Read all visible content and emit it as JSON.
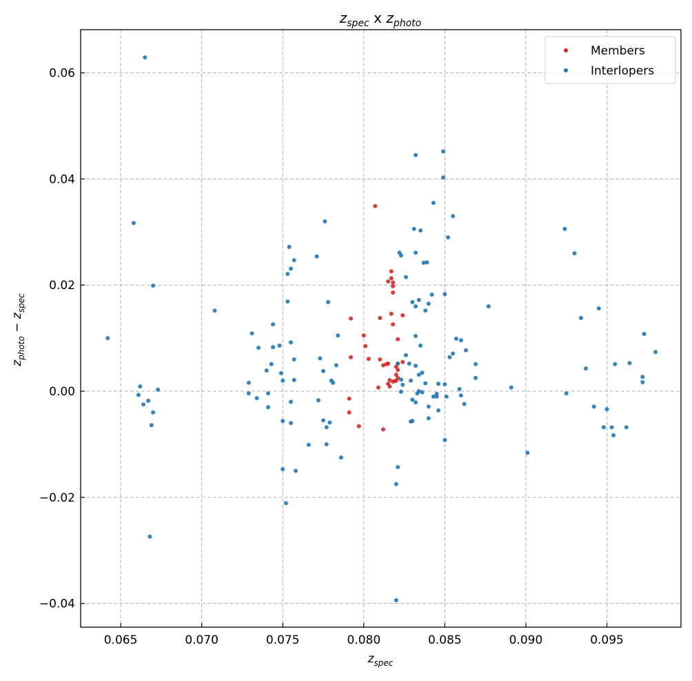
{
  "chart_data": {
    "type": "scatter",
    "title": {
      "main1": "z",
      "sub1": "spec",
      "mid": " x ",
      "main2": "z",
      "sub2": "photo"
    },
    "xlabel": {
      "main": "z",
      "sub": "spec"
    },
    "ylabel": {
      "main1": "z",
      "sub1": "photo",
      "mid": " − ",
      "main2": "z",
      "sub2": "spec"
    },
    "xlim": [
      0.06253,
      0.09957
    ],
    "ylim": [
      -0.04447,
      0.06814
    ],
    "grid": true,
    "legend_position": "top-right",
    "x_ticks": [
      0.065,
      0.07,
      0.075,
      0.08,
      0.085,
      0.09,
      0.095
    ],
    "x_tick_labels": [
      "0.065",
      "0.070",
      "0.075",
      "0.080",
      "0.085",
      "0.090",
      "0.095"
    ],
    "y_ticks": [
      -0.04,
      -0.02,
      0.0,
      0.02,
      0.04,
      0.06
    ],
    "y_tick_labels": [
      "−0.04",
      "−0.02",
      "0.00",
      "0.02",
      "0.04",
      "0.06"
    ],
    "series": [
      {
        "name": "Members",
        "color": "#d62728",
        "points": [
          [
            0.0807,
            0.0349
          ],
          [
            0.0817,
            0.0226
          ],
          [
            0.0817,
            0.0213
          ],
          [
            0.0818,
            0.0205
          ],
          [
            0.0815,
            0.0207
          ],
          [
            0.0818,
            0.0198
          ],
          [
            0.0818,
            0.0186
          ],
          [
            0.0792,
            0.0137
          ],
          [
            0.081,
            0.0138
          ],
          [
            0.0817,
            0.0146
          ],
          [
            0.0824,
            0.0143
          ],
          [
            0.0818,
            0.0126
          ],
          [
            0.08,
            0.0105
          ],
          [
            0.0801,
            0.0085
          ],
          [
            0.0821,
            0.0098
          ],
          [
            0.0792,
            0.0064
          ],
          [
            0.0803,
            0.0061
          ],
          [
            0.081,
            0.006
          ],
          [
            0.0821,
            0.0052
          ],
          [
            0.0812,
            0.0049
          ],
          [
            0.0814,
            0.0051
          ],
          [
            0.0815,
            0.0052
          ],
          [
            0.0824,
            0.0055
          ],
          [
            0.082,
            0.0046
          ],
          [
            0.0821,
            0.004
          ],
          [
            0.082,
            0.0031
          ],
          [
            0.0821,
            0.0025
          ],
          [
            0.0818,
            0.0018
          ],
          [
            0.0816,
            0.0021
          ],
          [
            0.0819,
            0.0019
          ],
          [
            0.0815,
            0.0014
          ],
          [
            0.0816,
            0.0009
          ],
          [
            0.082,
            0.002
          ],
          [
            0.0809,
            0.0007
          ],
          [
            0.0797,
            -0.0066
          ],
          [
            0.0791,
            -0.0014
          ],
          [
            0.0791,
            -0.004
          ],
          [
            0.0812,
            -0.0072
          ]
        ]
      },
      {
        "name": "Interlopers",
        "color": "#1f77b4",
        "points": [
          [
            0.0665,
            0.0629
          ],
          [
            0.0658,
            0.0317
          ],
          [
            0.067,
            0.0199
          ],
          [
            0.0642,
            0.01
          ],
          [
            0.0662,
            0.0009
          ],
          [
            0.0661,
            -0.0007
          ],
          [
            0.0664,
            -0.0025
          ],
          [
            0.0667,
            -0.0018
          ],
          [
            0.067,
            -0.004
          ],
          [
            0.0669,
            -0.0064
          ],
          [
            0.0673,
            0.0003
          ],
          [
            0.0668,
            -0.0274
          ],
          [
            0.0708,
            0.0152
          ],
          [
            0.0729,
            0.0016
          ],
          [
            0.0729,
            -0.0004
          ],
          [
            0.0731,
            0.0109
          ],
          [
            0.0734,
            -0.0013
          ],
          [
            0.0735,
            0.0082
          ],
          [
            0.074,
            0.0039
          ],
          [
            0.0741,
            -0.0004
          ],
          [
            0.0741,
            -0.003
          ],
          [
            0.0743,
            0.0051
          ],
          [
            0.0744,
            0.0126
          ],
          [
            0.0744,
            0.0083
          ],
          [
            0.0748,
            0.0086
          ],
          [
            0.0749,
            0.0034
          ],
          [
            0.075,
            0.002
          ],
          [
            0.075,
            -0.0147
          ],
          [
            0.075,
            -0.0056
          ],
          [
            0.0752,
            -0.0211
          ],
          [
            0.0753,
            0.0169
          ],
          [
            0.0753,
            0.0221
          ],
          [
            0.0754,
            0.0272
          ],
          [
            0.0755,
            0.0231
          ],
          [
            0.0755,
            0.0092
          ],
          [
            0.0755,
            -0.002
          ],
          [
            0.0755,
            -0.006
          ],
          [
            0.0757,
            0.0247
          ],
          [
            0.0757,
            0.006
          ],
          [
            0.0757,
            0.0021
          ],
          [
            0.0758,
            -0.015
          ],
          [
            0.0766,
            -0.0101
          ],
          [
            0.0771,
            0.0254
          ],
          [
            0.0772,
            -0.0017
          ],
          [
            0.0773,
            0.0062
          ],
          [
            0.0775,
            0.0038
          ],
          [
            0.0776,
            0.032
          ],
          [
            0.0775,
            -0.0055
          ],
          [
            0.0777,
            -0.0068
          ],
          [
            0.0779,
            -0.0059
          ],
          [
            0.0778,
            0.0168
          ],
          [
            0.078,
            0.002
          ],
          [
            0.0781,
            0.0016
          ],
          [
            0.0784,
            0.0105
          ],
          [
            0.0783,
            0.0049
          ],
          [
            0.0777,
            -0.01
          ],
          [
            0.0786,
            -0.0125
          ],
          [
            0.082,
            -0.0394
          ],
          [
            0.0821,
            -0.0143
          ],
          [
            0.082,
            -0.0175
          ],
          [
            0.0832,
            0.0445
          ],
          [
            0.0849,
            0.0452
          ],
          [
            0.0849,
            0.0403
          ],
          [
            0.0843,
            0.0355
          ],
          [
            0.0831,
            0.0306
          ],
          [
            0.0835,
            0.0303
          ],
          [
            0.0855,
            0.033
          ],
          [
            0.0852,
            0.029
          ],
          [
            0.0822,
            0.0261
          ],
          [
            0.0823,
            0.0256
          ],
          [
            0.0832,
            0.0261
          ],
          [
            0.0837,
            0.0242
          ],
          [
            0.0839,
            0.0243
          ],
          [
            0.0826,
            0.0215
          ],
          [
            0.0842,
            0.0182
          ],
          [
            0.085,
            0.0183
          ],
          [
            0.083,
            0.0168
          ],
          [
            0.0834,
            0.0172
          ],
          [
            0.0832,
            0.016
          ],
          [
            0.084,
            0.0165
          ],
          [
            0.0838,
            0.0152
          ],
          [
            0.0877,
            0.016
          ],
          [
            0.0832,
            0.0104
          ],
          [
            0.0835,
            0.0086
          ],
          [
            0.0857,
            0.0099
          ],
          [
            0.086,
            0.0096
          ],
          [
            0.0863,
            0.0077
          ],
          [
            0.0855,
            0.0071
          ],
          [
            0.0853,
            0.0064
          ],
          [
            0.0826,
            0.0068
          ],
          [
            0.0821,
            0.0052
          ],
          [
            0.0828,
            0.0052
          ],
          [
            0.0832,
            0.0048
          ],
          [
            0.0834,
            0.0031
          ],
          [
            0.0836,
            0.0035
          ],
          [
            0.0869,
            0.0051
          ],
          [
            0.0869,
            0.0025
          ],
          [
            0.0823,
            0.0022
          ],
          [
            0.0824,
            0.0012
          ],
          [
            0.0829,
            0.002
          ],
          [
            0.0838,
            0.0015
          ],
          [
            0.0846,
            0.0014
          ],
          [
            0.085,
            0.0013
          ],
          [
            0.0823,
            -0.0001
          ],
          [
            0.0833,
            -0.0004
          ],
          [
            0.0834,
            0.0
          ],
          [
            0.0836,
            -0.0002
          ],
          [
            0.0843,
            -0.001
          ],
          [
            0.0845,
            -0.0005
          ],
          [
            0.0845,
            -0.001
          ],
          [
            0.0851,
            -0.001
          ],
          [
            0.0859,
            0.0004
          ],
          [
            0.086,
            -0.0008
          ],
          [
            0.0862,
            -0.0024
          ],
          [
            0.083,
            -0.0016
          ],
          [
            0.0832,
            -0.0021
          ],
          [
            0.084,
            -0.0029
          ],
          [
            0.0846,
            -0.0036
          ],
          [
            0.084,
            -0.0051
          ],
          [
            0.0829,
            -0.0057
          ],
          [
            0.083,
            -0.0056
          ],
          [
            0.085,
            -0.0092
          ],
          [
            0.0891,
            0.0007
          ],
          [
            0.0901,
            -0.0116
          ],
          [
            0.0924,
            0.0306
          ],
          [
            0.093,
            0.026
          ],
          [
            0.0934,
            0.0138
          ],
          [
            0.0937,
            0.0043
          ],
          [
            0.0925,
            -0.0004
          ],
          [
            0.0942,
            -0.0029
          ],
          [
            0.0945,
            0.0156
          ],
          [
            0.0948,
            -0.0068
          ],
          [
            0.095,
            -0.0034
          ],
          [
            0.0953,
            -0.0068
          ],
          [
            0.0954,
            -0.0083
          ],
          [
            0.0955,
            0.0051
          ],
          [
            0.0962,
            -0.0068
          ],
          [
            0.0964,
            0.0053
          ],
          [
            0.0972,
            0.0027
          ],
          [
            0.0972,
            0.0017
          ],
          [
            0.0973,
            0.0108
          ],
          [
            0.098,
            0.0074
          ]
        ]
      }
    ]
  }
}
